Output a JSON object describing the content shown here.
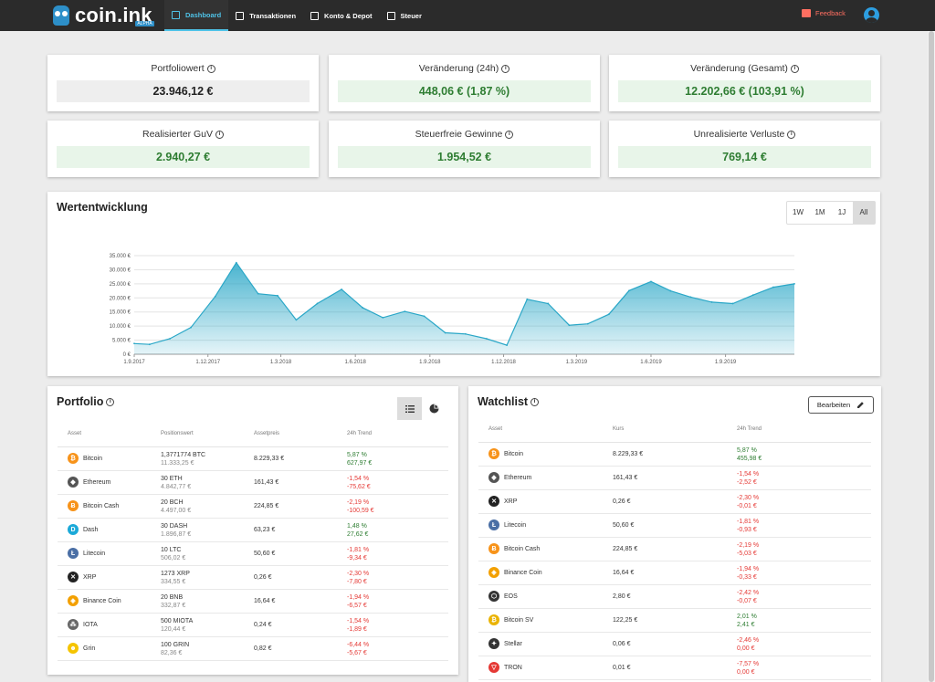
{
  "app": {
    "logo_text": "coin.ink",
    "logo_sub": "ALPHA"
  },
  "nav": [
    {
      "label": "Dashboard",
      "icon": "dashboard-icon",
      "active": true
    },
    {
      "label": "Transaktionen",
      "icon": "list-icon",
      "active": false
    },
    {
      "label": "Konto & Depot",
      "icon": "bank-icon",
      "active": false
    },
    {
      "label": "Steuer",
      "icon": "wallet-icon",
      "active": false
    }
  ],
  "feedback_label": "Feedback",
  "stats": [
    {
      "label": "Portfoliowert",
      "value": "23.946,12 €",
      "tone": "neutral"
    },
    {
      "label": "Veränderung (24h)",
      "value": "448,06 € (1,87 %)",
      "tone": "pos"
    },
    {
      "label": "Veränderung (Gesamt)",
      "value": "12.202,66 € (103,91 %)",
      "tone": "pos"
    },
    {
      "label": "Realisierter GuV",
      "value": "2.940,27 €",
      "tone": "pos"
    },
    {
      "label": "Steuerfreie Gewinne",
      "value": "1.954,52 €",
      "tone": "pos"
    },
    {
      "label": "Unrealisierte Verluste",
      "value": "769,14 €",
      "tone": "pos"
    }
  ],
  "info_glyph": "i",
  "chart_section": {
    "title": "Wertentwicklung",
    "ranges": [
      "1W",
      "1M",
      "1J",
      "All"
    ],
    "active_range": "All"
  },
  "chart_data": {
    "type": "area",
    "x": [
      "2017-09-01",
      "2017-09-20",
      "2017-10-15",
      "2017-11-10",
      "2017-12-10",
      "2018-01-05",
      "2018-02-01",
      "2018-02-25",
      "2018-03-20",
      "2018-04-15",
      "2018-05-15",
      "2018-06-10",
      "2018-07-05",
      "2018-08-01",
      "2018-08-25",
      "2018-09-20",
      "2018-10-15",
      "2018-11-10",
      "2018-12-05",
      "2018-12-30",
      "2019-01-25",
      "2019-02-20",
      "2019-03-15",
      "2019-04-10",
      "2019-05-05",
      "2019-06-01",
      "2019-06-25",
      "2019-07-20",
      "2019-08-15",
      "2019-09-10",
      "2019-10-05",
      "2019-10-30",
      "2019-11-25"
    ],
    "y": [
      3800,
      3500,
      5500,
      9500,
      20500,
      32500,
      21500,
      20800,
      12200,
      18000,
      23000,
      16500,
      13000,
      15200,
      13500,
      7600,
      7200,
      5500,
      3200,
      19500,
      18000,
      10300,
      10800,
      14200,
      22600,
      25800,
      22500,
      20300,
      18500,
      18000,
      21000,
      23800,
      25000
    ],
    "xticks": [
      "1.9.2017",
      "1.12.2017",
      "1.3.2018",
      "1.6.2018",
      "1.9.2018",
      "1.12.2018",
      "1.3.2019",
      "1.6.2019",
      "1.9.2019"
    ],
    "xtick_dates": [
      "2017-09-01",
      "2017-12-01",
      "2018-03-01",
      "2018-06-01",
      "2018-09-01",
      "2018-12-01",
      "2019-03-01",
      "2019-06-01",
      "2019-09-01"
    ],
    "yticks": [
      "0 €",
      "5.000 €",
      "10.000 €",
      "15.000 €",
      "20.000 €",
      "25.000 €",
      "30.000 €",
      "35.000 €"
    ],
    "ylim": [
      0,
      35000
    ],
    "grid": true,
    "color": "#2aa7c7"
  },
  "portfolio": {
    "title": "Portfolio",
    "headers": [
      "Asset",
      "Positionswert",
      "Assetpreis",
      "24h Trend"
    ],
    "rows": [
      {
        "name": "Bitcoin",
        "icon": "bitcoin-icon",
        "color": "#f7931a",
        "glyph": "₿",
        "qty": "1,3771774 BTC",
        "value": "11.333,25 €",
        "price": "8.229,33 €",
        "pct": "5,87 %",
        "abs": "627,97 €",
        "trend": "pos"
      },
      {
        "name": "Ethereum",
        "icon": "ethereum-icon",
        "color": "#555555",
        "glyph": "◆",
        "qty": "30 ETH",
        "value": "4.842,77 €",
        "price": "161,43 €",
        "pct": "-1,54 %",
        "abs": "-75,62 €",
        "trend": "neg"
      },
      {
        "name": "Bitcoin Cash",
        "icon": "bitcoin-cash-icon",
        "color": "#f7931a",
        "glyph": "Ƀ",
        "qty": "20 BCH",
        "value": "4.497,00 €",
        "price": "224,85 €",
        "pct": "-2,19 %",
        "abs": "-100,59 €",
        "trend": "neg"
      },
      {
        "name": "Dash",
        "icon": "dash-icon",
        "color": "#1ba9d8",
        "glyph": "D",
        "qty": "30 DASH",
        "value": "1.896,87 €",
        "price": "63,23 €",
        "pct": "1,48 %",
        "abs": "27,62 €",
        "trend": "pos"
      },
      {
        "name": "Litecoin",
        "icon": "litecoin-icon",
        "color": "#4a6fa5",
        "glyph": "Ł",
        "qty": "10 LTC",
        "value": "506,02 €",
        "price": "50,60 €",
        "pct": "-1,81 %",
        "abs": "-9,34 €",
        "trend": "neg"
      },
      {
        "name": "XRP",
        "icon": "xrp-icon",
        "color": "#222222",
        "glyph": "✕",
        "qty": "1273 XRP",
        "value": "334,55 €",
        "price": "0,26 €",
        "pct": "-2,30 %",
        "abs": "-7,80 €",
        "trend": "neg"
      },
      {
        "name": "Binance Coin",
        "icon": "binance-coin-icon",
        "color": "#f3a000",
        "glyph": "◈",
        "qty": "20 BNB",
        "value": "332,87 €",
        "price": "16,64 €",
        "pct": "-1,94 %",
        "abs": "-6,57 €",
        "trend": "neg"
      },
      {
        "name": "IOTA",
        "icon": "iota-icon",
        "color": "#666666",
        "glyph": "⁂",
        "qty": "500 MIOTA",
        "value": "120,44 €",
        "price": "0,24 €",
        "pct": "-1,54 %",
        "abs": "-1,89 €",
        "trend": "neg"
      },
      {
        "name": "Grin",
        "icon": "grin-icon",
        "color": "#f5c400",
        "glyph": "☻",
        "qty": "100 GRIN",
        "value": "82,36 €",
        "price": "0,82 €",
        "pct": "-6,44 %",
        "abs": "-5,67 €",
        "trend": "neg"
      }
    ]
  },
  "watchlist": {
    "title": "Watchlist",
    "edit_label": "Bearbeiten",
    "headers": [
      "Asset",
      "Kurs",
      "24h Trend"
    ],
    "rows": [
      {
        "name": "Bitcoin",
        "icon": "bitcoin-icon",
        "color": "#f7931a",
        "glyph": "₿",
        "price": "8.229,33 €",
        "pct": "5,87 %",
        "abs": "455,98 €",
        "trend": "pos"
      },
      {
        "name": "Ethereum",
        "icon": "ethereum-icon",
        "color": "#555555",
        "glyph": "◆",
        "price": "161,43 €",
        "pct": "-1,54 %",
        "abs": "-2,52 €",
        "trend": "neg"
      },
      {
        "name": "XRP",
        "icon": "xrp-icon",
        "color": "#222222",
        "glyph": "✕",
        "price": "0,26 €",
        "pct": "-2,30 %",
        "abs": "-0,01 €",
        "trend": "neg"
      },
      {
        "name": "Litecoin",
        "icon": "litecoin-icon",
        "color": "#4a6fa5",
        "glyph": "Ł",
        "price": "50,60 €",
        "pct": "-1,81 %",
        "abs": "-0,93 €",
        "trend": "neg"
      },
      {
        "name": "Bitcoin Cash",
        "icon": "bitcoin-cash-icon",
        "color": "#f7931a",
        "glyph": "Ƀ",
        "price": "224,85 €",
        "pct": "-2,19 %",
        "abs": "-5,03 €",
        "trend": "neg"
      },
      {
        "name": "Binance Coin",
        "icon": "binance-coin-icon",
        "color": "#f3a000",
        "glyph": "◈",
        "price": "16,64 €",
        "pct": "-1,94 %",
        "abs": "-0,33 €",
        "trend": "neg"
      },
      {
        "name": "EOS",
        "icon": "eos-icon",
        "color": "#333333",
        "glyph": "⬡",
        "price": "2,80 €",
        "pct": "-2,42 %",
        "abs": "-0,07 €",
        "trend": "neg"
      },
      {
        "name": "Bitcoin SV",
        "icon": "bitcoin-sv-icon",
        "color": "#eab300",
        "glyph": "₿",
        "price": "122,25 €",
        "pct": "2,01 %",
        "abs": "2,41 €",
        "trend": "pos"
      },
      {
        "name": "Stellar",
        "icon": "stellar-icon",
        "color": "#333333",
        "glyph": "✦",
        "price": "0,06 €",
        "pct": "-2,46 %",
        "abs": "0,00 €",
        "trend": "neg"
      },
      {
        "name": "TRON",
        "icon": "tron-icon",
        "color": "#e53935",
        "glyph": "▽",
        "price": "0,01 €",
        "pct": "-7,57 %",
        "abs": "0,00 €",
        "trend": "neg"
      }
    ]
  }
}
